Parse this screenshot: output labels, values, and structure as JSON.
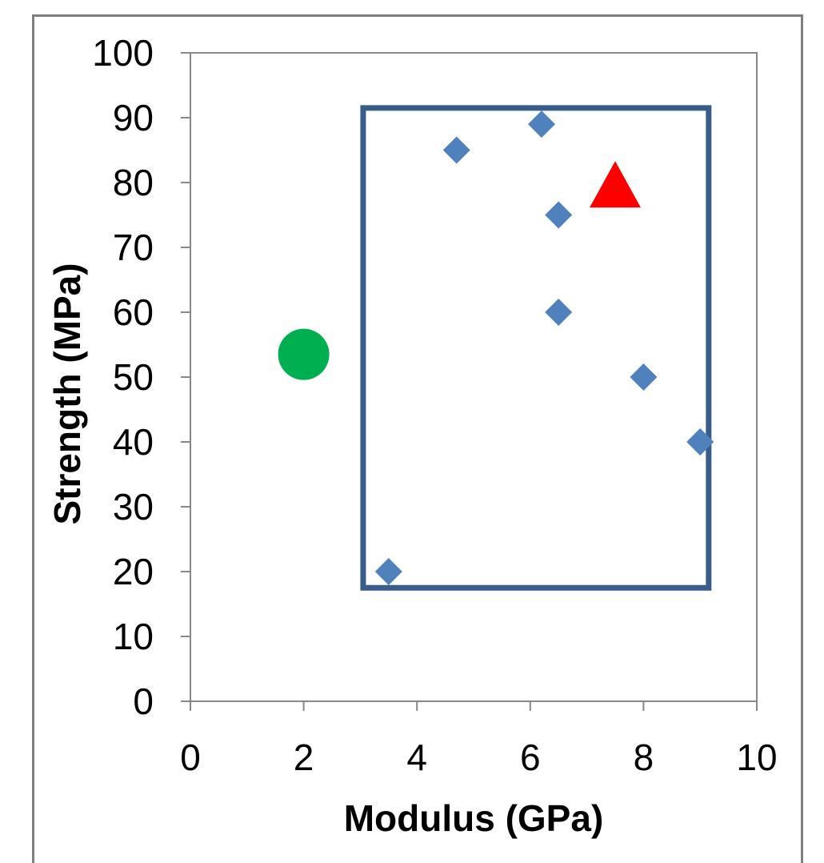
{
  "chart_data": {
    "type": "scatter",
    "xlabel": "Modulus (GPa)",
    "ylabel": "Strength (MPa)",
    "xlim": [
      0,
      10
    ],
    "ylim": [
      0,
      100
    ],
    "x_ticks": [
      0,
      2,
      4,
      6,
      8,
      10
    ],
    "y_ticks": [
      0,
      10,
      20,
      30,
      40,
      50,
      60,
      70,
      80,
      90,
      100
    ],
    "x_tick_labels": [
      "0",
      "2",
      "4",
      "6",
      "8",
      "10"
    ],
    "y_tick_labels": [
      "0",
      "10",
      "20",
      "30",
      "40",
      "50",
      "60",
      "70",
      "80",
      "90",
      "100"
    ],
    "grid": false,
    "series": [
      {
        "marker": "diamond",
        "color": "#4f81bd",
        "points": [
          {
            "x": 3.5,
            "y": 20
          },
          {
            "x": 4.7,
            "y": 85
          },
          {
            "x": 6.2,
            "y": 89
          },
          {
            "x": 6.5,
            "y": 75
          },
          {
            "x": 6.5,
            "y": 60
          },
          {
            "x": 8.0,
            "y": 50
          },
          {
            "x": 9.0,
            "y": 40
          }
        ]
      },
      {
        "marker": "circle",
        "color": "#00b050",
        "points": [
          {
            "x": 2.0,
            "y": 53.5
          }
        ]
      },
      {
        "marker": "triangle",
        "color": "#ff0000",
        "points": [
          {
            "x": 7.5,
            "y": 79
          }
        ]
      }
    ],
    "annotations": [
      {
        "type": "rectangle",
        "color": "#385d8a",
        "x_range": [
          3.05,
          9.15
        ],
        "y_range": [
          17.5,
          91.5
        ]
      }
    ]
  }
}
